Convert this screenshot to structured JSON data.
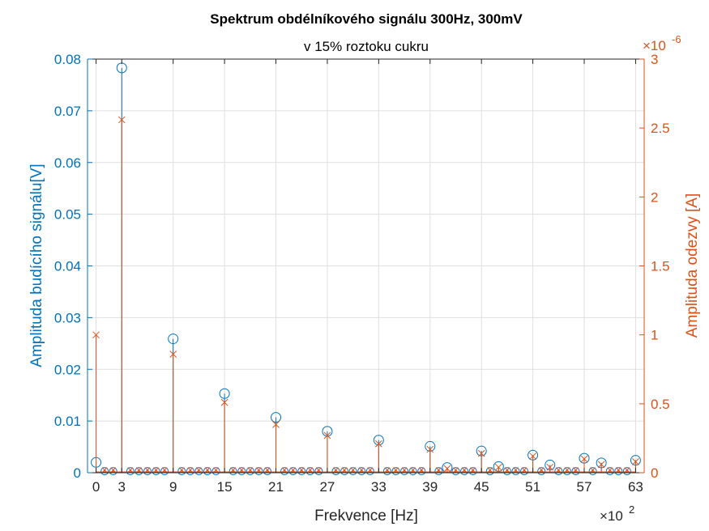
{
  "chart_data": {
    "type": "stem",
    "title": "Spektrum obdélníkového signálu 300Hz, 300mV",
    "subtitle": "v 15% roztoku cukru",
    "xlabel": "Frekvence [Hz]",
    "x_exponent_label": "×10",
    "x_exponent_power": "2",
    "xlim": [
      -1,
      64
    ],
    "xticks": [
      0,
      3,
      9,
      15,
      21,
      27,
      33,
      39,
      45,
      51,
      57,
      63
    ],
    "left_axis": {
      "label": "Amplituda budícího signálu[V]",
      "ylim": [
        0,
        0.08
      ],
      "ticks": [
        0,
        0.01,
        0.02,
        0.03,
        0.04,
        0.05,
        0.06,
        0.07,
        0.08
      ],
      "tick_labels": [
        "0",
        "0.01",
        "0.02",
        "0.03",
        "0.04",
        "0.05",
        "0.06",
        "0.07",
        "0.08"
      ]
    },
    "right_axis": {
      "label": "Amplituda odezvy [A]",
      "exponent_label": "×10",
      "exponent_power": "-6",
      "ylim": [
        0,
        3
      ],
      "ticks": [
        0,
        0.5,
        1,
        1.5,
        2,
        2.5,
        3
      ],
      "tick_labels": [
        "0",
        "0.5",
        "1",
        "1.5",
        "2",
        "2.5",
        "3"
      ]
    },
    "series": [
      {
        "name": "Amplituda budícího signálu",
        "axis": "left",
        "marker": "circle",
        "color": "#0072BD",
        "points": [
          {
            "x": 0,
            "y": 0.002
          },
          {
            "x": 3,
            "y": 0.0783
          },
          {
            "x": 9,
            "y": 0.0259
          },
          {
            "x": 15,
            "y": 0.0153
          },
          {
            "x": 21,
            "y": 0.0107
          },
          {
            "x": 27,
            "y": 0.008
          },
          {
            "x": 33,
            "y": 0.0063
          },
          {
            "x": 39,
            "y": 0.0051
          },
          {
            "x": 41,
            "y": 0.001
          },
          {
            "x": 45,
            "y": 0.0042
          },
          {
            "x": 47,
            "y": 0.0012
          },
          {
            "x": 51,
            "y": 0.0034
          },
          {
            "x": 53,
            "y": 0.0015
          },
          {
            "x": 57,
            "y": 0.0028
          },
          {
            "x": 59,
            "y": 0.0019
          },
          {
            "x": 63,
            "y": 0.0024
          }
        ],
        "baseline_noise": 0.0003
      },
      {
        "name": "Amplituda odezvy",
        "axis": "right",
        "marker": "x",
        "color": "#D95319",
        "points": [
          {
            "x": 0,
            "y": 1.0
          },
          {
            "x": 3,
            "y": 2.56
          },
          {
            "x": 9,
            "y": 0.86
          },
          {
            "x": 15,
            "y": 0.51
          },
          {
            "x": 21,
            "y": 0.35
          },
          {
            "x": 27,
            "y": 0.27
          },
          {
            "x": 33,
            "y": 0.21
          },
          {
            "x": 39,
            "y": 0.17
          },
          {
            "x": 41,
            "y": 0.03
          },
          {
            "x": 45,
            "y": 0.14
          },
          {
            "x": 47,
            "y": 0.04
          },
          {
            "x": 51,
            "y": 0.12
          },
          {
            "x": 53,
            "y": 0.04
          },
          {
            "x": 57,
            "y": 0.1
          },
          {
            "x": 59,
            "y": 0.06
          },
          {
            "x": 63,
            "y": 0.08
          }
        ],
        "baseline_noise": 0.02
      }
    ],
    "grid": true
  }
}
